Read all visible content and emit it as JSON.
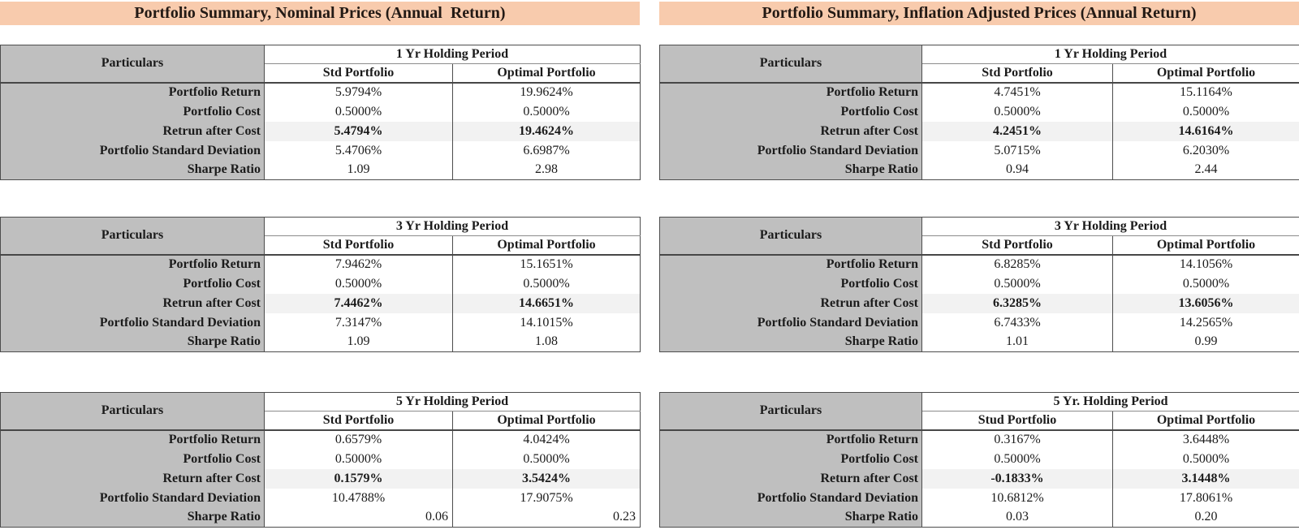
{
  "colors": {
    "title_bg": "#F8CBAD",
    "label_bg": "#BFBFBF",
    "highlight_bg": "#F2F2F2",
    "text": "#1B1B1B"
  },
  "blocks": [
    {
      "title": "Portfolio Summary, Nominal Prices (Annual  Return)",
      "tables": [
        {
          "particulars_label": "Particulars",
          "period": "1 Yr Holding Period",
          "columns": [
            "Std Portfolio",
            "Optimal Portfolio"
          ],
          "rows": [
            {
              "label": "Portfolio Return",
              "std": "5.9794%",
              "optimal": "19.9624%"
            },
            {
              "label": "Portfolio Cost",
              "std": "0.5000%",
              "optimal": "0.5000%"
            },
            {
              "label": "Retrun after Cost",
              "std": "5.4794%",
              "optimal": "19.4624%",
              "emphasis": true
            },
            {
              "label": "Portfolio Standard Deviation",
              "std": "5.4706%",
              "optimal": "6.6987%"
            },
            {
              "label": "Sharpe Ratio",
              "std": "1.09",
              "optimal": "2.98"
            }
          ]
        },
        {
          "particulars_label": "Particulars",
          "period": "3 Yr Holding Period",
          "columns": [
            "Std Portfolio",
            "Optimal Portfolio"
          ],
          "rows": [
            {
              "label": "Portfolio Return",
              "std": "7.9462%",
              "optimal": "15.1651%"
            },
            {
              "label": "Portfolio Cost",
              "std": "0.5000%",
              "optimal": "0.5000%"
            },
            {
              "label": "Retrun after Cost",
              "std": "7.4462%",
              "optimal": "14.6651%",
              "emphasis": true
            },
            {
              "label": "Portfolio Standard Deviation",
              "std": "7.3147%",
              "optimal": "14.1015%"
            },
            {
              "label": "Sharpe Ratio",
              "std": "1.09",
              "optimal": "1.08"
            }
          ]
        },
        {
          "particulars_label": "Particulars",
          "period": "5 Yr Holding Period",
          "columns": [
            "Std Portfolio",
            "Optimal Portfolio"
          ],
          "rows": [
            {
              "label": "Portfolio Return",
              "std": "0.6579%",
              "optimal": "4.0424%"
            },
            {
              "label": "Portfolio Cost",
              "std": "0.5000%",
              "optimal": "0.5000%"
            },
            {
              "label": "Return after Cost",
              "std": "0.1579%",
              "optimal": "3.5424%",
              "emphasis": true
            },
            {
              "label": "Portfolio Standard Deviation",
              "std": "10.4788%",
              "optimal": "17.9075%"
            },
            {
              "label": "Sharpe Ratio",
              "std": "0.06",
              "optimal": "0.23",
              "value_align": "right"
            }
          ]
        }
      ]
    },
    {
      "title": "Portfolio Summary, Inflation Adjusted Prices (Annual Return)",
      "tables": [
        {
          "particulars_label": "Particulars",
          "period": "1 Yr Holding Period",
          "columns": [
            "Std Portfolio",
            "Optimal Portfolio"
          ],
          "rows": [
            {
              "label": "Portfolio Return",
              "std": "4.7451%",
              "optimal": "15.1164%"
            },
            {
              "label": "Portfolio Cost",
              "std": "0.5000%",
              "optimal": "0.5000%"
            },
            {
              "label": "Retrun after Cost",
              "std": "4.2451%",
              "optimal": "14.6164%",
              "emphasis": true
            },
            {
              "label": "Portfolio Standard Deviation",
              "std": "5.0715%",
              "optimal": "6.2030%"
            },
            {
              "label": "Sharpe Ratio",
              "std": "0.94",
              "optimal": "2.44"
            }
          ]
        },
        {
          "particulars_label": "Particulars",
          "period": "3 Yr Holding Period",
          "columns": [
            "Std Portfolio",
            "Optimal Portfolio"
          ],
          "rows": [
            {
              "label": "Portfolio Return",
              "std": "6.8285%",
              "optimal": "14.1056%"
            },
            {
              "label": "Portfolio Cost",
              "std": "0.5000%",
              "optimal": "0.5000%"
            },
            {
              "label": "Retrun after Cost",
              "std": "6.3285%",
              "optimal": "13.6056%",
              "emphasis": true
            },
            {
              "label": "Portfolio Standard Deviation",
              "std": "6.7433%",
              "optimal": "14.2565%"
            },
            {
              "label": "Sharpe Ratio",
              "std": "1.01",
              "optimal": "0.99"
            }
          ]
        },
        {
          "particulars_label": "Particulars",
          "period": "5 Yr. Holding Period",
          "columns": [
            "Stud Portfolio",
            "Optimal Portfolio"
          ],
          "rows": [
            {
              "label": "Portfolio Return",
              "std": "0.3167%",
              "optimal": "3.6448%"
            },
            {
              "label": "Portfolio Cost",
              "std": "0.5000%",
              "optimal": "0.5000%"
            },
            {
              "label": "Return after Cost",
              "std": "-0.1833%",
              "optimal": "3.1448%",
              "emphasis": true
            },
            {
              "label": "Portfolio Standard Deviation",
              "std": "10.6812%",
              "optimal": "17.8061%"
            },
            {
              "label": "Sharpe Ratio",
              "std": "0.03",
              "optimal": "0.20"
            }
          ]
        }
      ]
    }
  ]
}
